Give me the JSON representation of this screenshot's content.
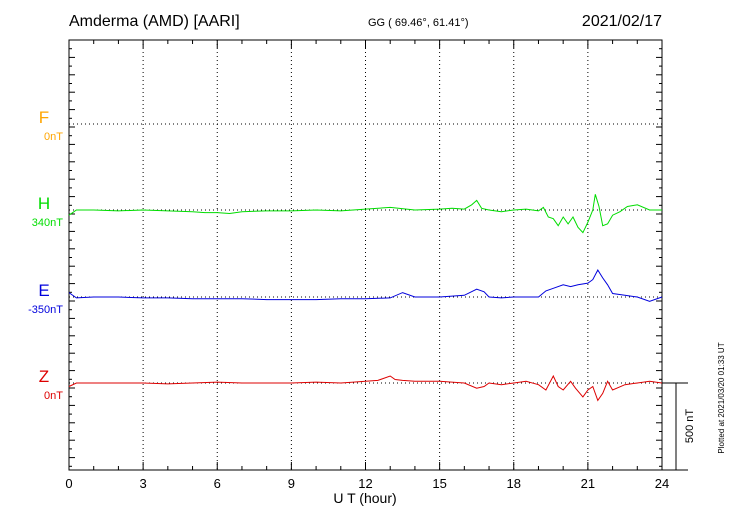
{
  "header": {
    "station": "Amderma (AMD)  [AARI]",
    "coords": "GG ( 69.46°,  61.41°)",
    "date": "2021/02/17"
  },
  "footer": {
    "plotted": "Plotted at 2021/03/20 01:33 UT"
  },
  "chart_data": {
    "type": "line",
    "title": "Amderma (AMD)  [AARI]",
    "xlabel": "U T (hour)",
    "ylabel": "",
    "xlim": [
      0,
      24
    ],
    "x_ticks": [
      0,
      3,
      6,
      9,
      12,
      15,
      18,
      21,
      24
    ],
    "ylim": [
      -1475,
      975
    ],
    "grid": true,
    "scale_bar": {
      "label": "500 nT",
      "value": 500
    },
    "series": [
      {
        "name": "F",
        "baseline_label": "0nT",
        "color": "#ffa500",
        "offset": 0,
        "x": [],
        "y": []
      },
      {
        "name": "H",
        "baseline_label": "340nT",
        "color": "#00dd00",
        "offset": 0,
        "x": [
          0,
          0.3,
          1,
          2,
          3,
          4,
          5,
          5.5,
          6,
          6.5,
          7,
          8,
          9,
          10,
          11,
          12,
          13,
          14,
          15,
          15.5,
          16,
          16.3,
          16.5,
          16.7,
          17,
          17.5,
          18,
          18.5,
          19,
          19.2,
          19.4,
          19.6,
          19.8,
          20,
          20.2,
          20.4,
          20.6,
          20.8,
          21,
          21.2,
          21.3,
          21.45,
          21.6,
          21.8,
          22,
          22.3,
          22.6,
          23,
          23.5,
          24
        ],
        "y": [
          -30,
          0,
          0,
          -5,
          0,
          -5,
          -10,
          -15,
          -15,
          -20,
          -10,
          -5,
          -5,
          0,
          -5,
          5,
          15,
          0,
          5,
          10,
          5,
          30,
          55,
          10,
          0,
          -10,
          0,
          5,
          -5,
          15,
          -40,
          -50,
          -90,
          -40,
          -80,
          -40,
          -100,
          -130,
          -70,
          0,
          90,
          20,
          -90,
          -80,
          -30,
          -10,
          20,
          30,
          0,
          0
        ]
      },
      {
        "name": "E",
        "baseline_label": "-350nT",
        "color": "#0000dd",
        "offset": 0,
        "x": [
          0,
          0.3,
          1,
          2,
          3,
          4,
          5,
          6,
          7,
          8,
          9,
          10,
          11,
          12,
          13,
          13.5,
          14,
          15,
          15.5,
          16,
          16.5,
          16.8,
          17,
          17.5,
          18,
          18.5,
          19,
          19.3,
          19.6,
          20,
          20.3,
          20.6,
          21,
          21.2,
          21.4,
          21.6,
          21.8,
          22,
          22.5,
          23,
          23.5,
          24
        ],
        "y": [
          25,
          -5,
          0,
          0,
          -5,
          -5,
          -10,
          -10,
          -10,
          -15,
          -15,
          -15,
          -10,
          -10,
          -5,
          25,
          0,
          0,
          5,
          10,
          45,
          30,
          0,
          -5,
          0,
          0,
          0,
          35,
          50,
          70,
          60,
          70,
          80,
          100,
          155,
          110,
          70,
          20,
          10,
          0,
          -25,
          0
        ]
      },
      {
        "name": "Z",
        "baseline_label": "0nT",
        "color": "#dd0000",
        "offset": 0,
        "x": [
          0,
          0.3,
          1,
          2,
          3,
          4,
          5,
          6,
          7,
          8,
          9,
          10,
          11,
          12,
          12.5,
          13,
          13.2,
          13.5,
          14,
          15,
          16,
          16.5,
          16.8,
          17,
          17.5,
          18,
          18.5,
          19,
          19.3,
          19.6,
          19.8,
          20,
          20.3,
          20.5,
          20.8,
          21,
          21.2,
          21.4,
          21.6,
          21.8,
          22,
          22.5,
          23,
          23.5,
          24
        ],
        "y": [
          -20,
          0,
          0,
          0,
          0,
          -5,
          0,
          5,
          0,
          0,
          0,
          5,
          0,
          10,
          15,
          40,
          20,
          15,
          10,
          10,
          0,
          -30,
          -20,
          0,
          -10,
          0,
          10,
          -10,
          -40,
          40,
          -20,
          -40,
          10,
          -30,
          -80,
          -40,
          -20,
          -100,
          -60,
          10,
          -40,
          -10,
          0,
          10,
          0
        ]
      }
    ]
  }
}
